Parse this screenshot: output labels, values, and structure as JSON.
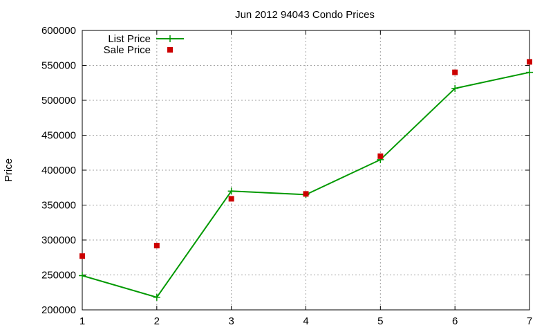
{
  "chart_data": {
    "type": "line",
    "title": "Jun 2012 94043 Condo Prices",
    "xlabel": "",
    "ylabel": "Price",
    "x": [
      1,
      2,
      3,
      4,
      5,
      6,
      7
    ],
    "xlim": [
      1,
      7
    ],
    "ylim": [
      200000,
      600000
    ],
    "xticks": [
      "1",
      "2",
      "3",
      "4",
      "5",
      "6",
      "7"
    ],
    "yticks": [
      "200000",
      "250000",
      "300000",
      "350000",
      "400000",
      "450000",
      "500000",
      "550000",
      "600000"
    ],
    "grid": true,
    "legend_position": "top-left",
    "series": [
      {
        "name": "List Price",
        "style": "line with plus markers",
        "color": "#009900",
        "values": [
          249000,
          218000,
          370000,
          365000,
          415000,
          517000,
          540000
        ]
      },
      {
        "name": "Sale Price",
        "style": "square markers",
        "color": "#cc0000",
        "values": [
          277000,
          292000,
          359000,
          366000,
          420000,
          540000,
          555000
        ]
      }
    ]
  }
}
